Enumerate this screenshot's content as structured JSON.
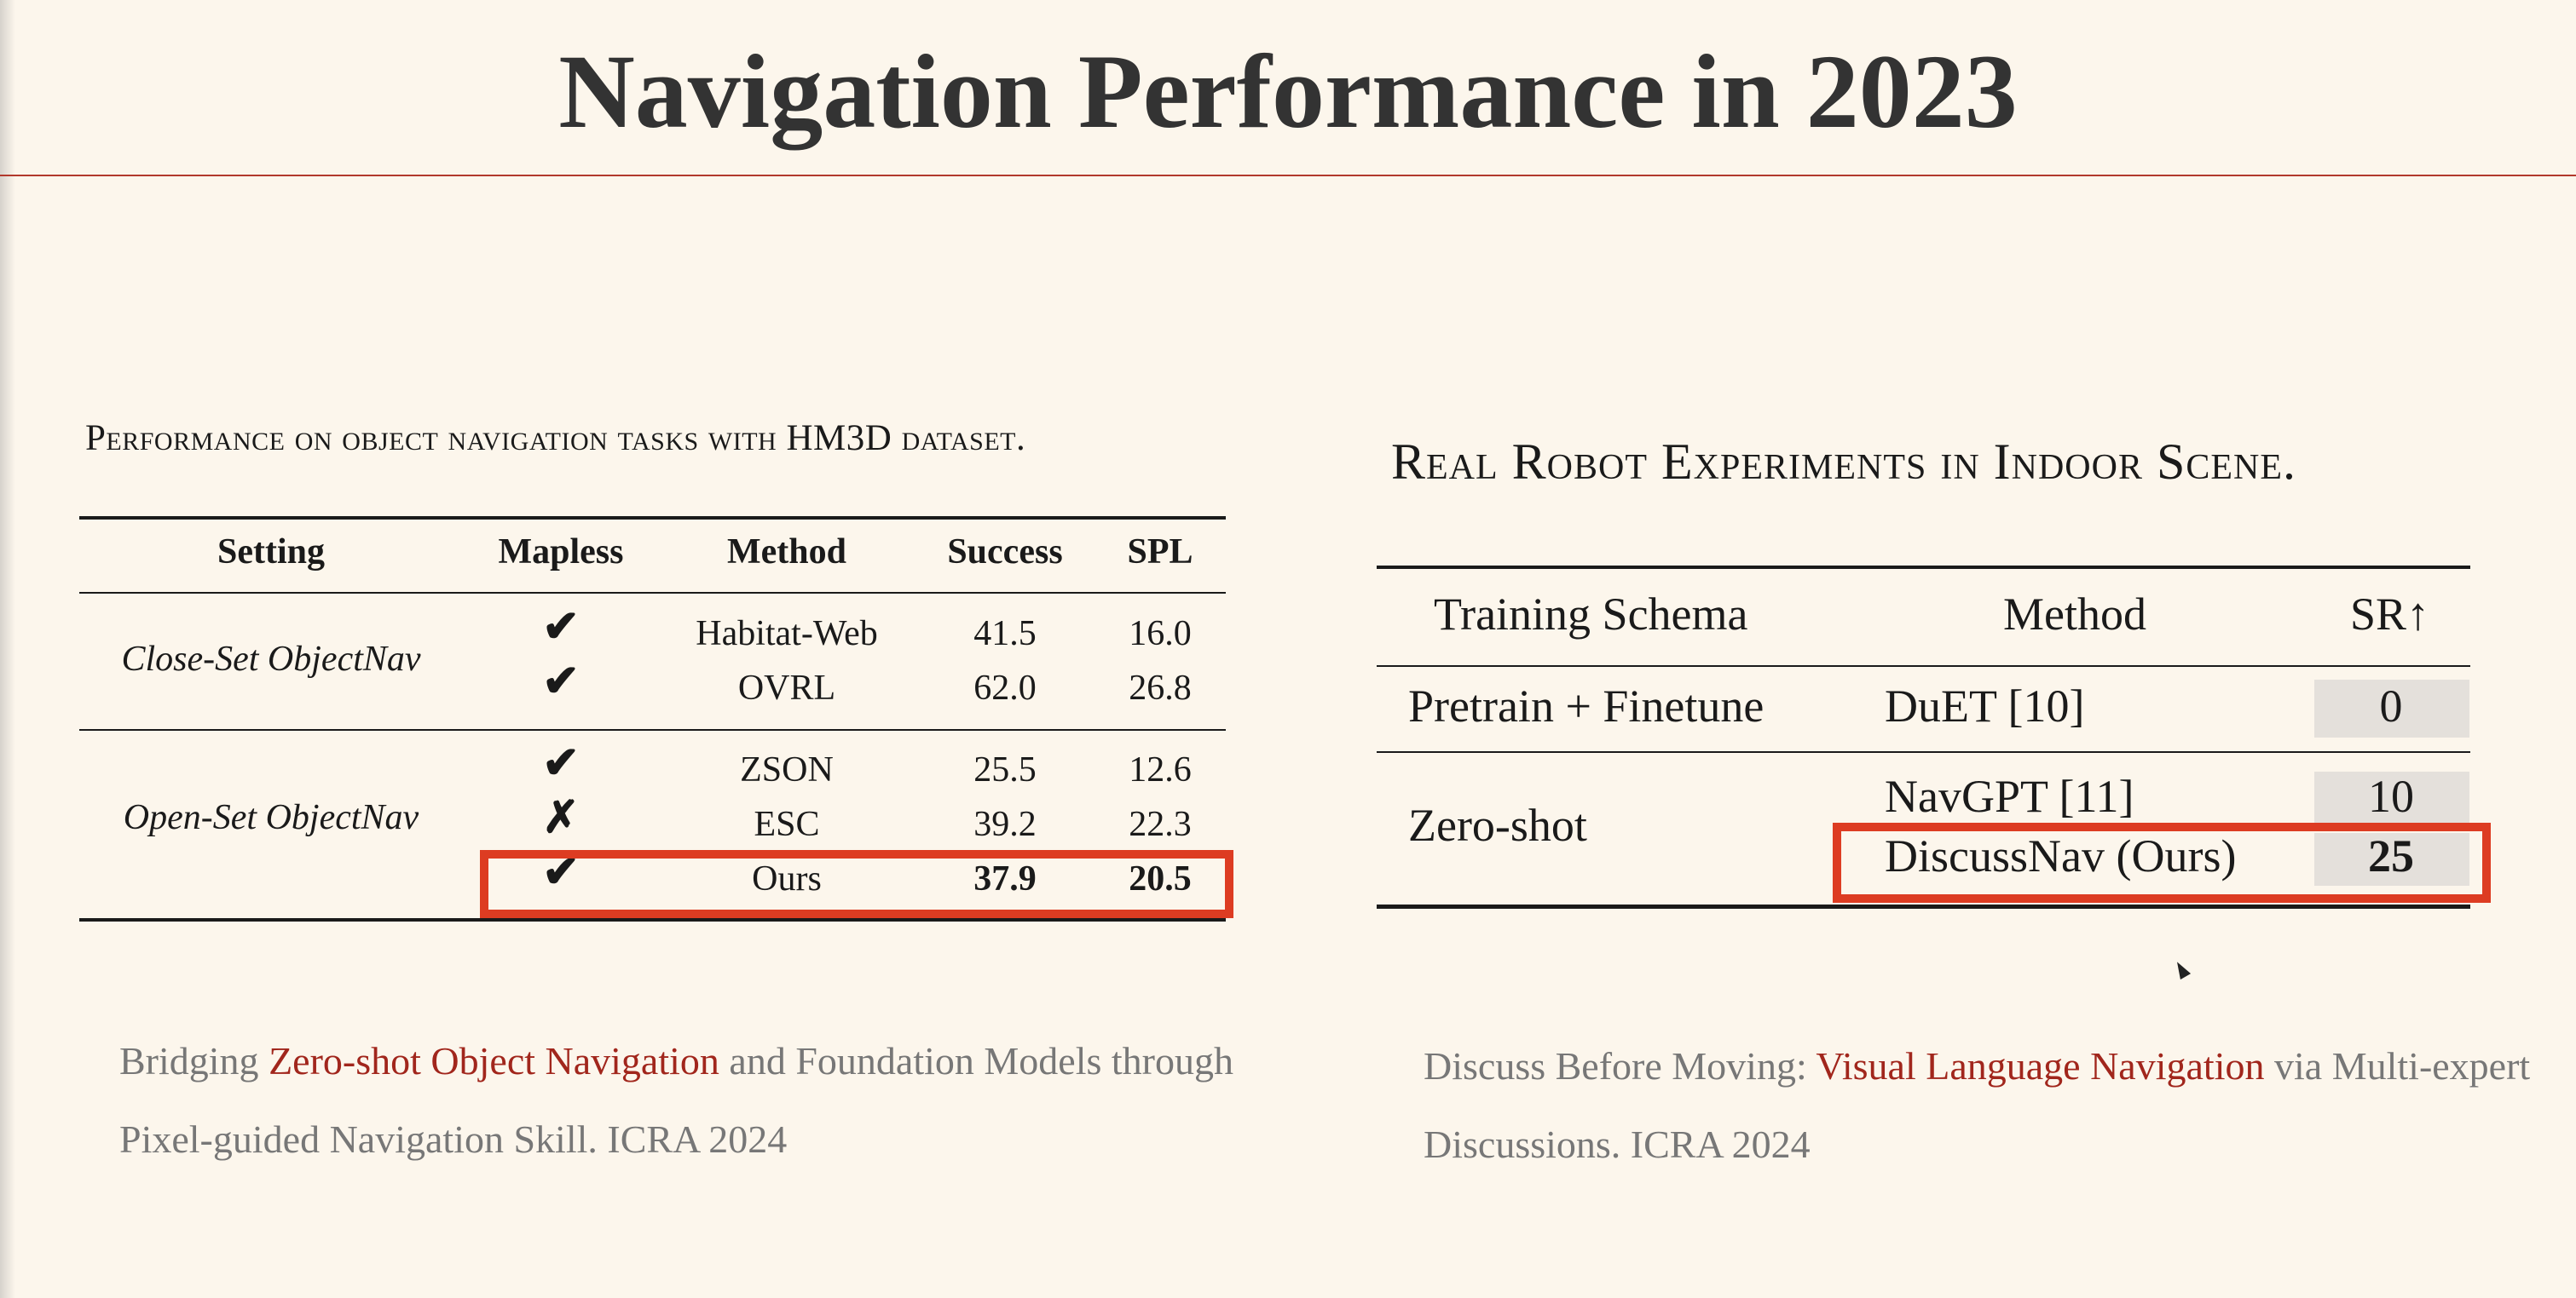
{
  "title": "Navigation Performance in 2023",
  "left_table": {
    "caption": "Performance on object navigation tasks with HM3D dataset.",
    "headers": [
      "Setting",
      "Mapless",
      "Method",
      "Success",
      "SPL"
    ],
    "groups": [
      "Close-Set ObjectNav",
      "Open-Set ObjectNav"
    ],
    "rows": [
      {
        "mapless": "✔",
        "method": "Habitat-Web",
        "success": "41.5",
        "spl": "16.0"
      },
      {
        "mapless": "✔",
        "method": "OVRL",
        "success": "62.0",
        "spl": "26.8"
      },
      {
        "mapless": "✔",
        "method": "ZSON",
        "success": "25.5",
        "spl": "12.6"
      },
      {
        "mapless": "✗",
        "method": "ESC",
        "success": "39.2",
        "spl": "22.3"
      },
      {
        "mapless": "✔",
        "method": "Ours",
        "success": "37.9",
        "spl": "20.5"
      }
    ]
  },
  "right_table": {
    "caption": "Real Robot Experiments in Indoor Scene.",
    "headers": [
      "Training Schema",
      "Method",
      "SR↑"
    ],
    "groups": [
      "Pretrain + Finetune",
      "Zero-shot"
    ],
    "rows": [
      {
        "method": "DuET [10]",
        "sr": "0"
      },
      {
        "method": "NavGPT [11]",
        "sr": "10"
      },
      {
        "method": "DiscussNav (Ours)",
        "sr": "25"
      }
    ]
  },
  "references": {
    "left": {
      "pre": "Bridging ",
      "highlight": "Zero-shot Object Navigation",
      "post": " and Foundation Models through Pixel-guided Navigation Skill. ICRA 2024"
    },
    "right": {
      "pre": "Discuss Before Moving: ",
      "highlight": "Visual Language Navigation",
      "post": " via Multi-expert Discussions. ICRA 2024"
    }
  },
  "colors": {
    "background": "#fcf6ec",
    "accent_red": "#dd3c22",
    "link_red": "#a1261c",
    "reference_gray": "#777777"
  }
}
